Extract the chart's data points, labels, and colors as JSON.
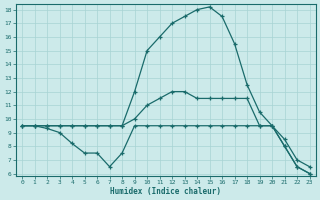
{
  "xlabel": "Humidex (Indice chaleur)",
  "xlim": [
    -0.5,
    23.5
  ],
  "ylim": [
    5.8,
    18.4
  ],
  "yticks": [
    6,
    7,
    8,
    9,
    10,
    11,
    12,
    13,
    14,
    15,
    16,
    17,
    18
  ],
  "xticks": [
    0,
    1,
    2,
    3,
    4,
    5,
    6,
    7,
    8,
    9,
    10,
    11,
    12,
    13,
    14,
    15,
    16,
    17,
    18,
    19,
    20,
    21,
    22,
    23
  ],
  "bg_color": "#cceaea",
  "line_color": "#1a6b6b",
  "grid_color": "#a8d4d4",
  "curve_top_x": [
    0,
    1,
    2,
    3,
    4,
    5,
    6,
    7,
    8,
    9,
    10,
    11,
    12,
    13,
    14,
    15,
    16,
    17,
    18,
    19,
    20,
    21,
    22,
    23
  ],
  "curve_top_y": [
    9.5,
    9.5,
    9.5,
    9.5,
    9.5,
    9.5,
    9.5,
    9.5,
    9.5,
    12.0,
    15.0,
    16.0,
    17.0,
    17.5,
    18.0,
    18.2,
    17.5,
    15.5,
    12.5,
    10.5,
    9.5,
    8.0,
    6.5,
    6.0
  ],
  "curve_mid_x": [
    0,
    1,
    2,
    3,
    4,
    5,
    6,
    7,
    8,
    9,
    10,
    11,
    12,
    13,
    14,
    15,
    16,
    17,
    18,
    19,
    20,
    21,
    22,
    23
  ],
  "curve_mid_y": [
    9.5,
    9.5,
    9.5,
    9.5,
    9.5,
    9.5,
    9.5,
    9.5,
    9.5,
    10.0,
    11.0,
    11.5,
    12.0,
    12.0,
    11.5,
    11.5,
    11.5,
    11.5,
    11.5,
    9.5,
    9.5,
    8.5,
    7.0,
    6.5
  ],
  "curve_bot_x": [
    0,
    1,
    2,
    3,
    4,
    5,
    6,
    7,
    8,
    9,
    10,
    11,
    12,
    13,
    14,
    15,
    16,
    17,
    18,
    19,
    20,
    21,
    22,
    23
  ],
  "curve_bot_y": [
    9.5,
    9.5,
    9.3,
    9.0,
    8.2,
    7.5,
    7.5,
    6.5,
    7.5,
    9.5,
    9.5,
    9.5,
    9.5,
    9.5,
    9.5,
    9.5,
    9.5,
    9.5,
    9.5,
    9.5,
    9.5,
    8.0,
    6.5,
    6.0
  ]
}
